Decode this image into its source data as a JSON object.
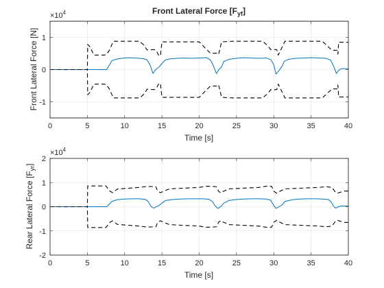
{
  "chart_data": [
    {
      "type": "line",
      "title": "Front Lateral Force [F",
      "title_sub": "yf",
      "title_end": "]",
      "xlabel": "Time [s]",
      "ylabel": "Front Lateral Force [N]",
      "xlim": [
        0,
        40
      ],
      "ylim": [
        -15000,
        15000
      ],
      "xticks": [
        0,
        5,
        10,
        15,
        20,
        25,
        30,
        35,
        40
      ],
      "yticks": [
        -10000,
        0,
        10000
      ],
      "xtick_labels": [
        "0",
        "5",
        "10",
        "15",
        "20",
        "25",
        "30",
        "35",
        "40"
      ],
      "ytick_labels": [
        "-1",
        "0",
        "1"
      ],
      "y_multiplier": "×10",
      "y_multiplier_exp": "4",
      "grid": true,
      "series": [
        {
          "style": "solid",
          "color": "#0072BD",
          "x": [
            0,
            5,
            7.6,
            7.9,
            8.3,
            9.0,
            9.6,
            10.5,
            11.5,
            12.5,
            13.0,
            13.4,
            13.8,
            14.2,
            14.6,
            15.1,
            15.4,
            16.0,
            17.0,
            18.0,
            19.0,
            20.0,
            21.0,
            21.5,
            21.9,
            22.3,
            22.7,
            23.0,
            23.3,
            24.0,
            25.0,
            26.0,
            27.0,
            28.0,
            29.0,
            29.6,
            30.0,
            30.3,
            30.7,
            31.1,
            31.4,
            32.0,
            33.0,
            34.0,
            35.0,
            36.0,
            37.0,
            37.6,
            38.0,
            38.4,
            38.7,
            39.1,
            39.5,
            40
          ],
          "y": [
            0,
            0,
            0,
            1200,
            2800,
            3300,
            3500,
            3700,
            3600,
            3400,
            3000,
            1500,
            -1200,
            100,
            800,
            2100,
            2900,
            3300,
            3500,
            3600,
            3500,
            3600,
            3700,
            3000,
            1200,
            -1200,
            200,
            800,
            2500,
            3200,
            3500,
            3700,
            3600,
            3500,
            3600,
            3100,
            1500,
            -1400,
            -300,
            1000,
            2600,
            3200,
            3500,
            3600,
            3700,
            3600,
            3500,
            3000,
            1200,
            -1200,
            -200,
            300,
            300,
            200
          ]
        },
        {
          "style": "dashed",
          "color": "#000000",
          "x": [
            0,
            5,
            5.05,
            5.3,
            5.9,
            7.2,
            7.5,
            7.9,
            8.5,
            12.0,
            12.6,
            13.0,
            14.0,
            14.3,
            14.6,
            14.8,
            15.0,
            20.0,
            20.8,
            21.5,
            22.4,
            22.6,
            23.0,
            24.5,
            28.5,
            29.2,
            29.6,
            30.4,
            30.5,
            30.6,
            31.5,
            36.5,
            37.3,
            37.8,
            38.5,
            38.6,
            38.7,
            40
          ],
          "y": [
            0,
            0,
            7800,
            7200,
            4500,
            4500,
            4600,
            5800,
            8800,
            8800,
            7600,
            6100,
            6200,
            5600,
            4300,
            4300,
            8600,
            8600,
            6700,
            5100,
            5100,
            4700,
            8600,
            8800,
            8800,
            7400,
            6200,
            6200,
            5300,
            4500,
            8800,
            8800,
            7100,
            6000,
            6000,
            4800,
            8500,
            8500
          ]
        },
        {
          "style": "dashed",
          "color": "#000000",
          "x": [
            0,
            5,
            5.05,
            5.3,
            5.9,
            7.2,
            7.5,
            7.9,
            8.5,
            12.0,
            12.6,
            13.0,
            14.0,
            14.3,
            14.6,
            14.8,
            15.0,
            20.0,
            20.8,
            21.5,
            22.4,
            22.6,
            23.0,
            24.5,
            28.5,
            29.2,
            29.6,
            30.4,
            30.5,
            30.6,
            31.5,
            36.5,
            37.3,
            37.8,
            38.5,
            38.6,
            38.7,
            40
          ],
          "y": [
            0,
            0,
            -7800,
            -7200,
            -4500,
            -4500,
            -4600,
            -5800,
            -8800,
            -8800,
            -7600,
            -6100,
            -6200,
            -5600,
            -4300,
            -4300,
            -8600,
            -8600,
            -6700,
            -5100,
            -5100,
            -4700,
            -8600,
            -8800,
            -8800,
            -7400,
            -6200,
            -6200,
            -5300,
            -4500,
            -8800,
            -8800,
            -7100,
            -6000,
            -6000,
            -4800,
            -8500,
            -8500
          ]
        }
      ]
    },
    {
      "type": "line",
      "title": "",
      "xlabel": "Time [s]",
      "ylabel": "Rear Lateral Force [F",
      "ylabel_sub": "yr",
      "ylabel_end": "]",
      "xlim": [
        0,
        40
      ],
      "ylim": [
        -20000,
        20000
      ],
      "xticks": [
        0,
        5,
        10,
        15,
        20,
        25,
        30,
        35,
        40
      ],
      "yticks": [
        -20000,
        -10000,
        0,
        10000,
        20000
      ],
      "xtick_labels": [
        "0",
        "5",
        "10",
        "15",
        "20",
        "25",
        "30",
        "35",
        "40"
      ],
      "ytick_labels": [
        "-2",
        "-1",
        "0",
        "1",
        "2"
      ],
      "y_multiplier": "×10",
      "y_multiplier_exp": "4",
      "grid": true,
      "series": [
        {
          "style": "solid",
          "color": "#0072BD",
          "x": [
            0,
            7.6,
            7.9,
            8.3,
            9.0,
            10.0,
            11.0,
            12.0,
            12.8,
            13.2,
            13.5,
            13.9,
            14.3,
            14.6,
            15.0,
            15.5,
            16.5,
            17.5,
            18.5,
            19.5,
            20.5,
            21.3,
            21.8,
            22.1,
            22.5,
            22.9,
            23.3,
            24.0,
            25.0,
            26.0,
            27.0,
            28.0,
            29.0,
            29.6,
            29.9,
            30.3,
            30.7,
            31.1,
            31.5,
            32.5,
            33.5,
            34.5,
            35.5,
            36.5,
            37.3,
            37.7,
            38.0,
            38.3,
            38.6,
            39.0,
            40
          ],
          "y": [
            0,
            0,
            1000,
            2200,
            2900,
            3200,
            3300,
            3300,
            3000,
            2000,
            300,
            -600,
            100,
            500,
            1500,
            2600,
            3000,
            3200,
            3300,
            3300,
            3300,
            3100,
            2100,
            500,
            -700,
            100,
            1500,
            2600,
            3000,
            3200,
            3300,
            3300,
            3200,
            2700,
            1000,
            -700,
            0,
            700,
            2200,
            2900,
            3200,
            3300,
            3300,
            3200,
            3000,
            2000,
            300,
            -600,
            -100,
            300,
            300
          ]
        },
        {
          "style": "dashed",
          "color": "#000000",
          "x": [
            0,
            5,
            5.05,
            7.5,
            8.0,
            8.4,
            9.0,
            12.0,
            13.0,
            14.2,
            14.4,
            14.8,
            15.0,
            16.0,
            20.0,
            21.0,
            22.3,
            22.6,
            22.9,
            23.2,
            24.0,
            28.0,
            29.0,
            29.7,
            30.0,
            30.4,
            30.7,
            31.5,
            36.0,
            37.0,
            37.8,
            38.2,
            38.5,
            39.5,
            40
          ],
          "y": [
            0,
            0,
            8600,
            8600,
            6500,
            5800,
            7300,
            8000,
            8400,
            8300,
            6600,
            5800,
            6100,
            7400,
            8000,
            8500,
            8300,
            6400,
            5700,
            6300,
            7400,
            8000,
            8500,
            8500,
            6400,
            5600,
            6200,
            7400,
            8000,
            8300,
            8000,
            6300,
            5600,
            6500,
            6500
          ]
        },
        {
          "style": "dashed",
          "color": "#000000",
          "x": [
            0,
            5,
            5.05,
            7.5,
            8.0,
            8.4,
            9.0,
            12.0,
            13.0,
            14.2,
            14.4,
            14.8,
            15.0,
            16.0,
            20.0,
            21.0,
            22.3,
            22.6,
            22.9,
            23.2,
            24.0,
            28.0,
            29.0,
            29.7,
            30.0,
            30.4,
            30.7,
            31.5,
            36.0,
            37.0,
            37.8,
            38.2,
            38.5,
            39.5,
            40
          ],
          "y": [
            0,
            0,
            -8600,
            -8600,
            -6500,
            -5800,
            -7300,
            -8000,
            -8400,
            -8300,
            -6600,
            -5800,
            -6100,
            -7400,
            -8000,
            -8500,
            -8300,
            -6400,
            -5700,
            -6300,
            -7400,
            -8000,
            -8500,
            -8500,
            -6400,
            -5600,
            -6200,
            -7400,
            -8000,
            -8300,
            -8000,
            -6300,
            -5600,
            -6500,
            -6500
          ]
        }
      ]
    }
  ]
}
